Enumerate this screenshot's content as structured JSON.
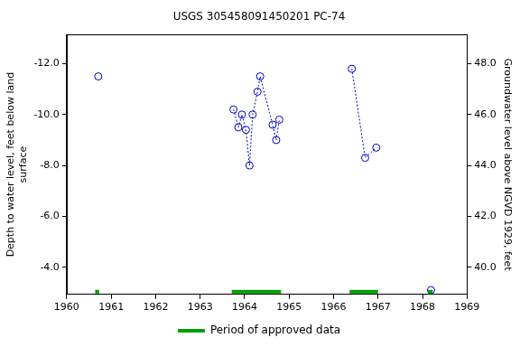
{
  "chart_data": {
    "type": "line",
    "title": "USGS 305458091450201 PC-74",
    "ylabel": [
      "Depth to water level, feet below land",
      "surface"
    ],
    "y2label": "Groundwater level above NGVD 1929, feet",
    "xlim": [
      1960,
      1969
    ],
    "xticks": [
      1960,
      1961,
      1962,
      1963,
      1964,
      1965,
      1966,
      1967,
      1968,
      1969
    ],
    "ylim": [
      -13.14,
      -2.93
    ],
    "yticks": [
      {
        "value": -12,
        "label": "-12.0"
      },
      {
        "value": -10,
        "label": "-10.0"
      },
      {
        "value": -8,
        "label": "-8.0"
      },
      {
        "value": -6,
        "label": "-6.0"
      },
      {
        "value": -4,
        "label": "-4.0"
      }
    ],
    "y2lim": [
      38.93,
      49.14
    ],
    "y2ticks": [
      {
        "value": 40,
        "label": "40.0"
      },
      {
        "value": 42,
        "label": "42.0"
      },
      {
        "value": 44,
        "label": "44.0"
      },
      {
        "value": 46,
        "label": "46.0"
      },
      {
        "value": 48,
        "label": "48.0"
      }
    ],
    "grid": false,
    "legend": "bottom",
    "series": [
      {
        "color": "#0000cc",
        "marker": "circle",
        "line_style": "dotted",
        "x": [
          1960.71
        ],
        "values": [
          -11.5
        ]
      },
      {
        "color": "#0000cc",
        "marker": "circle",
        "line_style": "dotted",
        "x": [
          1963.75,
          1963.86,
          1963.94,
          1964.03,
          1964.11,
          1964.18,
          1964.29,
          1964.35,
          1964.63,
          1964.71,
          1964.78
        ],
        "values": [
          -10.2,
          -9.5,
          -10.0,
          -9.4,
          -8.0,
          -10.0,
          -10.9,
          -11.5,
          -9.6,
          -9.0,
          -9.8
        ]
      },
      {
        "color": "#0000cc",
        "marker": "circle",
        "line_style": "dotted",
        "x": [
          1966.41,
          1966.71,
          1966.96
        ],
        "values": [
          -11.8,
          -8.3,
          -8.7
        ]
      },
      {
        "color": "#0000cc",
        "marker": "circle",
        "line_style": "dotted",
        "x": [
          1968.19
        ],
        "values": [
          -3.1
        ]
      }
    ],
    "approved": {
      "name": "Period of approved data",
      "color": "#00a000",
      "periods": [
        [
          1960.64,
          1960.73
        ],
        [
          1963.71,
          1964.82
        ],
        [
          1966.36,
          1967.0
        ],
        [
          1968.12,
          1968.23
        ]
      ]
    }
  }
}
